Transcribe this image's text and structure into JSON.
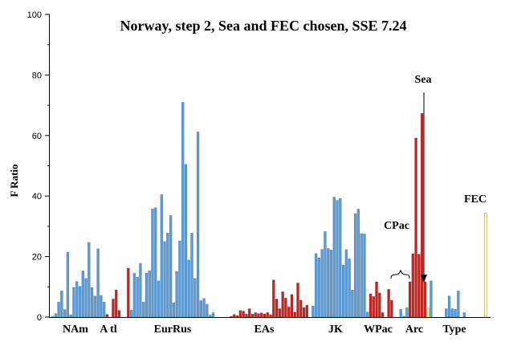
{
  "chart_data": {
    "type": "bar",
    "title": "Norway, step 2, Sea and FEC chosen, SSE 7.24",
    "xlabel": "",
    "ylabel": "F Ratio",
    "ylim": [
      0,
      100
    ],
    "yticks": [
      "0",
      "20",
      "40",
      "60",
      "80",
      "100"
    ],
    "grid": false,
    "colors": {
      "blue": "#5b9bd5",
      "red": "#c8221c",
      "yellow": "#ffff99",
      "edge": "#2f4f6f"
    },
    "group_labels": [
      "NAm",
      "A tl",
      "EurRus",
      "EAs",
      "JK",
      "WPac",
      "CPac",
      "Arc",
      "Type"
    ],
    "annotations": {
      "sea": "Sea",
      "fec": "FEC",
      "cpac": "CPac"
    },
    "bars": [
      {
        "v": 0.3,
        "c": "b"
      },
      {
        "v": 1.2,
        "c": "b"
      },
      {
        "v": 5,
        "c": "b"
      },
      {
        "v": 8.7,
        "c": "b"
      },
      {
        "v": 2.5,
        "c": "b"
      },
      {
        "v": 21.5,
        "c": "b"
      },
      {
        "v": 0.8,
        "c": "b"
      },
      {
        "v": 9.8,
        "c": "b"
      },
      {
        "v": 11.8,
        "c": "b"
      },
      {
        "v": 10.2,
        "c": "b"
      },
      {
        "v": 15.3,
        "c": "b"
      },
      {
        "v": 12.8,
        "c": "b"
      },
      {
        "v": 24.7,
        "c": "b"
      },
      {
        "v": 9.8,
        "c": "b"
      },
      {
        "v": 7,
        "c": "b"
      },
      {
        "v": 22.6,
        "c": "b"
      },
      {
        "v": 7.2,
        "c": "b"
      },
      {
        "v": 5,
        "c": "b"
      },
      {
        "v": 0.9,
        "c": "r"
      },
      {
        "v": 0,
        "c": "r"
      },
      {
        "v": 6,
        "c": "r"
      },
      {
        "v": 9,
        "c": "r"
      },
      {
        "v": 2.2,
        "c": "r"
      },
      {
        "v": 0,
        "c": "r"
      },
      {
        "v": 0,
        "c": "r"
      },
      {
        "v": 16.2,
        "c": "r"
      },
      {
        "v": 2.3,
        "c": "b"
      },
      {
        "v": 14.5,
        "c": "b"
      },
      {
        "v": 13.2,
        "c": "b"
      },
      {
        "v": 17.8,
        "c": "b"
      },
      {
        "v": 5,
        "c": "b"
      },
      {
        "v": 14.6,
        "c": "b"
      },
      {
        "v": 15.3,
        "c": "b"
      },
      {
        "v": 35.8,
        "c": "b"
      },
      {
        "v": 36.2,
        "c": "b"
      },
      {
        "v": 12,
        "c": "b"
      },
      {
        "v": 40.5,
        "c": "b"
      },
      {
        "v": 25,
        "c": "b"
      },
      {
        "v": 27.8,
        "c": "b"
      },
      {
        "v": 33.6,
        "c": "b"
      },
      {
        "v": 4.8,
        "c": "b"
      },
      {
        "v": 15.1,
        "c": "b"
      },
      {
        "v": 25.2,
        "c": "b"
      },
      {
        "v": 71,
        "c": "b"
      },
      {
        "v": 50.5,
        "c": "b"
      },
      {
        "v": 18.9,
        "c": "b"
      },
      {
        "v": 27.8,
        "c": "b"
      },
      {
        "v": 12.8,
        "c": "b"
      },
      {
        "v": 61.2,
        "c": "b"
      },
      {
        "v": 5.5,
        "c": "b"
      },
      {
        "v": 6.2,
        "c": "b"
      },
      {
        "v": 4.3,
        "c": "b"
      },
      {
        "v": 0.7,
        "c": "b"
      },
      {
        "v": 1.5,
        "c": "b"
      },
      {
        "v": 0,
        "c": "r"
      },
      {
        "v": 0,
        "c": "r"
      },
      {
        "v": 0,
        "c": "r"
      },
      {
        "v": 0,
        "c": "r"
      },
      {
        "v": 0,
        "c": "r"
      },
      {
        "v": 0.3,
        "c": "r"
      },
      {
        "v": 0.9,
        "c": "r"
      },
      {
        "v": 0.5,
        "c": "r"
      },
      {
        "v": 2.2,
        "c": "r"
      },
      {
        "v": 2,
        "c": "r"
      },
      {
        "v": 1,
        "c": "r"
      },
      {
        "v": 2.8,
        "c": "r"
      },
      {
        "v": 1,
        "c": "r"
      },
      {
        "v": 1.5,
        "c": "r"
      },
      {
        "v": 1.2,
        "c": "r"
      },
      {
        "v": 1.4,
        "c": "r"
      },
      {
        "v": 1.1,
        "c": "r"
      },
      {
        "v": 1.5,
        "c": "r"
      },
      {
        "v": 0.8,
        "c": "r"
      },
      {
        "v": 12.3,
        "c": "r"
      },
      {
        "v": 6,
        "c": "r"
      },
      {
        "v": 2.8,
        "c": "r"
      },
      {
        "v": 8.4,
        "c": "r"
      },
      {
        "v": 6.3,
        "c": "r"
      },
      {
        "v": 3.4,
        "c": "r"
      },
      {
        "v": 7.5,
        "c": "r"
      },
      {
        "v": 1.7,
        "c": "r"
      },
      {
        "v": 11.3,
        "c": "r"
      },
      {
        "v": 5.6,
        "c": "r"
      },
      {
        "v": 3.2,
        "c": "r"
      },
      {
        "v": 4,
        "c": "r"
      },
      {
        "v": 0,
        "c": "b"
      },
      {
        "v": 3.7,
        "c": "b"
      },
      {
        "v": 21,
        "c": "b"
      },
      {
        "v": 19.6,
        "c": "b"
      },
      {
        "v": 22.4,
        "c": "b"
      },
      {
        "v": 28.3,
        "c": "b"
      },
      {
        "v": 22.7,
        "c": "b"
      },
      {
        "v": 22.2,
        "c": "b"
      },
      {
        "v": 39.7,
        "c": "b"
      },
      {
        "v": 38.6,
        "c": "b"
      },
      {
        "v": 39.2,
        "c": "b"
      },
      {
        "v": 17.2,
        "c": "b"
      },
      {
        "v": 22.3,
        "c": "b"
      },
      {
        "v": 19.3,
        "c": "b"
      },
      {
        "v": 9,
        "c": "b"
      },
      {
        "v": 34.2,
        "c": "b"
      },
      {
        "v": 35.7,
        "c": "b"
      },
      {
        "v": 27.6,
        "c": "b"
      },
      {
        "v": 27.5,
        "c": "b"
      },
      {
        "v": 1.7,
        "c": "b"
      },
      {
        "v": 7.7,
        "c": "r"
      },
      {
        "v": 6.8,
        "c": "r"
      },
      {
        "v": 11.7,
        "c": "r"
      },
      {
        "v": 8,
        "c": "r"
      },
      {
        "v": 1.5,
        "c": "r"
      },
      {
        "v": 0,
        "c": "r"
      },
      {
        "v": 9.2,
        "c": "r"
      },
      {
        "v": 5.6,
        "c": "r"
      },
      {
        "v": 0,
        "c": "b"
      },
      {
        "v": 0,
        "c": "b"
      },
      {
        "v": 2.6,
        "c": "b"
      },
      {
        "v": 0.3,
        "c": "b"
      },
      {
        "v": 3.1,
        "c": "b"
      },
      {
        "v": 11.7,
        "c": "r"
      },
      {
        "v": 21,
        "c": "r"
      },
      {
        "v": 59.2,
        "c": "r"
      },
      {
        "v": 20.8,
        "c": "r"
      },
      {
        "v": 67.3,
        "c": "r"
      },
      {
        "v": 11.7,
        "c": "r"
      },
      {
        "v": 3,
        "c": "y"
      },
      {
        "v": 12,
        "c": "b"
      },
      {
        "v": 0,
        "c": "b"
      },
      {
        "v": 0,
        "c": "b"
      },
      {
        "v": 0,
        "c": "b"
      },
      {
        "v": 0,
        "c": "b"
      },
      {
        "v": 2.8,
        "c": "b"
      },
      {
        "v": 7,
        "c": "b"
      },
      {
        "v": 2.8,
        "c": "b"
      },
      {
        "v": 2.6,
        "c": "b"
      },
      {
        "v": 8.7,
        "c": "b"
      },
      {
        "v": 0,
        "c": "b"
      },
      {
        "v": 1.5,
        "c": "b"
      },
      {
        "v": 0,
        "c": "b"
      },
      {
        "v": 0,
        "c": "b"
      },
      {
        "v": 0,
        "c": "b"
      },
      {
        "v": 0,
        "c": "b"
      },
      {
        "v": 0,
        "c": "b"
      },
      {
        "v": 0,
        "c": "b"
      },
      {
        "v": 34.3,
        "c": "y"
      }
    ]
  }
}
